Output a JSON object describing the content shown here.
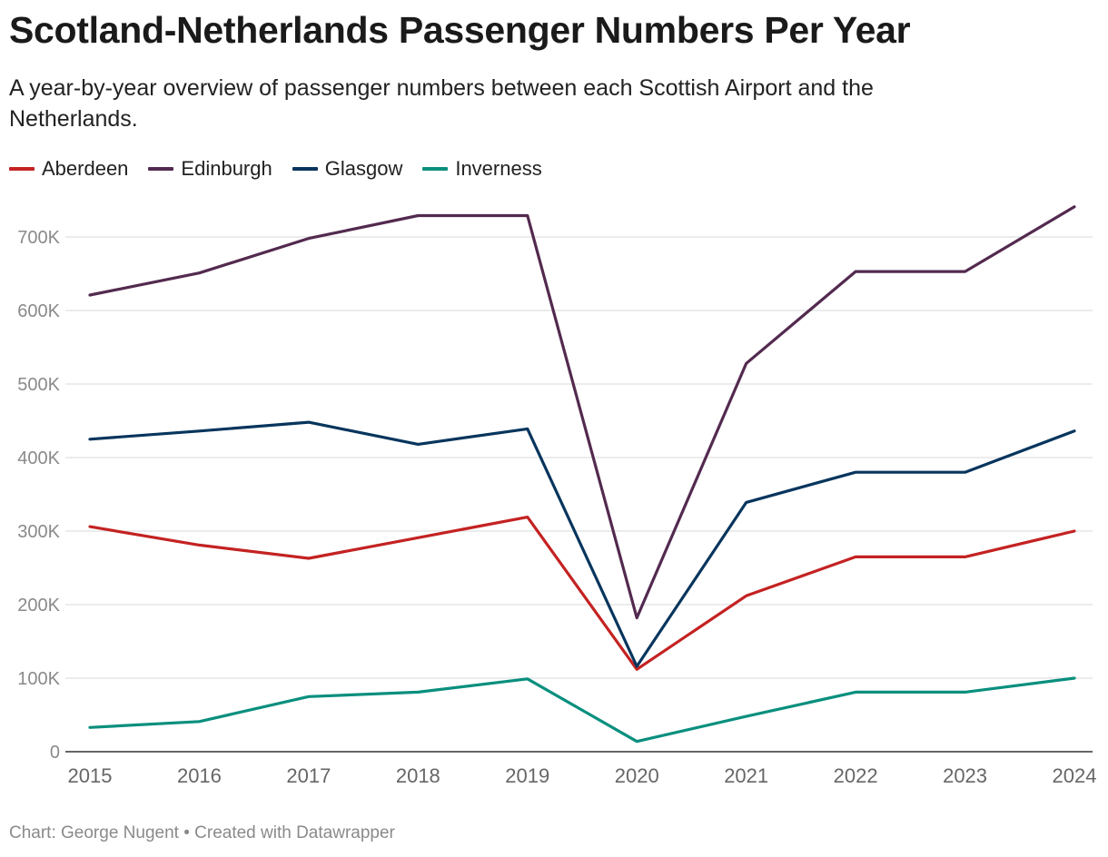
{
  "chart_data": {
    "type": "line",
    "title": "Scotland-Netherlands Passenger Numbers Per Year",
    "subtitle": "A year-by-year overview of passenger numbers between each Scottish Airport and the Netherlands.",
    "x": [
      "2015",
      "2016",
      "2017",
      "2018",
      "2019",
      "2020",
      "2021",
      "2022",
      "2023",
      "2024"
    ],
    "series": [
      {
        "name": "Aberdeen",
        "color": "#c42222",
        "values": [
          306000,
          281000,
          263000,
          291000,
          319000,
          112000,
          212000,
          265000,
          265000,
          300000
        ]
      },
      {
        "name": "Edinburgh",
        "color": "#532a4f",
        "values": [
          621000,
          651000,
          698000,
          729000,
          729000,
          182000,
          528000,
          653000,
          653000,
          741000
        ]
      },
      {
        "name": "Glasgow",
        "color": "#07355d",
        "values": [
          425000,
          436000,
          448000,
          418000,
          439000,
          116000,
          339000,
          380000,
          380000,
          436000
        ]
      },
      {
        "name": "Inverness",
        "color": "#098f7e",
        "values": [
          33000,
          41000,
          75000,
          81000,
          99000,
          14000,
          48000,
          81000,
          81000,
          100000
        ]
      }
    ],
    "yticks": [
      {
        "value": 0,
        "label": "0"
      },
      {
        "value": 100000,
        "label": "100K"
      },
      {
        "value": 200000,
        "label": "200K"
      },
      {
        "value": 300000,
        "label": "300K"
      },
      {
        "value": 400000,
        "label": "400K"
      },
      {
        "value": 500000,
        "label": "500K"
      },
      {
        "value": 600000,
        "label": "600K"
      },
      {
        "value": 700000,
        "label": "700K"
      }
    ],
    "ylim": [
      0,
      700000
    ],
    "xlabel": "",
    "ylabel": "",
    "grid": true,
    "legend": "top-left"
  },
  "footer": "Chart: George Nugent • Created with Datawrapper"
}
